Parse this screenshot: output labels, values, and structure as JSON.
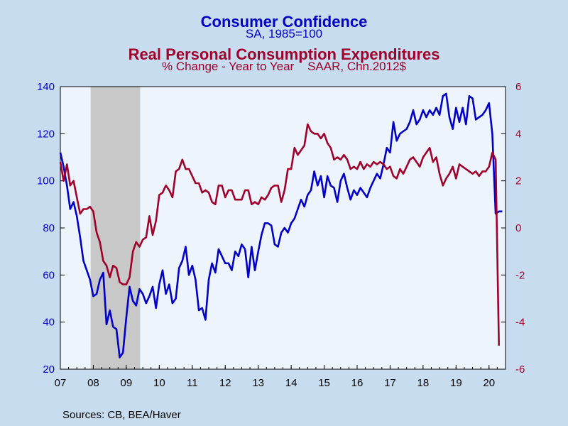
{
  "titles": {
    "series1_title": "Consumer Confidence",
    "series1_subtitle": "SA, 1985=100",
    "series2_title": "Real Personal Consumption Expenditures",
    "series2_subtitle": "% Change - Year to Year    SAAR, Chn.2012$"
  },
  "source": "Sources:  CB, BEA/Haver",
  "colors": {
    "series1": "#0000c8",
    "series2": "#a0002a",
    "plot_bg": "#eef4fb",
    "recession": "#c8c8c8",
    "page_bg": "#c8dcf0"
  },
  "chart_data": {
    "type": "line",
    "x_tick_labels": [
      "07",
      "08",
      "09",
      "10",
      "11",
      "12",
      "13",
      "14",
      "15",
      "16",
      "17",
      "18",
      "19",
      "20"
    ],
    "x_range": [
      2007.0,
      2020.5
    ],
    "left_axis": {
      "range": [
        20,
        140
      ],
      "ticks": [
        20,
        40,
        60,
        80,
        100,
        120,
        140
      ]
    },
    "right_axis": {
      "range": [
        -6,
        6
      ],
      "ticks": [
        -6,
        -4,
        -2,
        0,
        2,
        4,
        6
      ]
    },
    "recession_shading": [
      2007.92,
      2009.42
    ],
    "grid": false,
    "series": [
      {
        "name": "Consumer Confidence",
        "axis": "left",
        "x": [
          2007.0,
          2007.1,
          2007.2,
          2007.3,
          2007.4,
          2007.5,
          2007.6,
          2007.7,
          2007.8,
          2007.9,
          2008.0,
          2008.1,
          2008.2,
          2008.3,
          2008.4,
          2008.5,
          2008.6,
          2008.7,
          2008.8,
          2008.9,
          2009.0,
          2009.1,
          2009.2,
          2009.3,
          2009.4,
          2009.5,
          2009.6,
          2009.7,
          2009.8,
          2009.9,
          2010.0,
          2010.1,
          2010.2,
          2010.3,
          2010.4,
          2010.5,
          2010.6,
          2010.7,
          2010.8,
          2010.9,
          2011.0,
          2011.1,
          2011.2,
          2011.3,
          2011.4,
          2011.5,
          2011.6,
          2011.7,
          2011.8,
          2011.9,
          2012.0,
          2012.1,
          2012.2,
          2012.3,
          2012.4,
          2012.5,
          2012.6,
          2012.7,
          2012.8,
          2012.9,
          2013.0,
          2013.1,
          2013.2,
          2013.3,
          2013.4,
          2013.5,
          2013.6,
          2013.7,
          2013.8,
          2013.9,
          2014.0,
          2014.1,
          2014.2,
          2014.3,
          2014.4,
          2014.5,
          2014.6,
          2014.7,
          2014.8,
          2014.9,
          2015.0,
          2015.1,
          2015.2,
          2015.3,
          2015.4,
          2015.5,
          2015.6,
          2015.7,
          2015.8,
          2015.9,
          2016.0,
          2016.1,
          2016.2,
          2016.3,
          2016.4,
          2016.5,
          2016.6,
          2016.7,
          2016.8,
          2016.9,
          2017.0,
          2017.1,
          2017.2,
          2017.3,
          2017.4,
          2017.5,
          2017.6,
          2017.7,
          2017.8,
          2017.9,
          2018.0,
          2018.1,
          2018.2,
          2018.3,
          2018.4,
          2018.5,
          2018.6,
          2018.7,
          2018.8,
          2018.9,
          2019.0,
          2019.1,
          2019.2,
          2019.3,
          2019.4,
          2019.5,
          2019.6,
          2019.7,
          2019.8,
          2019.9,
          2020.0,
          2020.1,
          2020.2,
          2020.3,
          2020.4
        ],
        "values": [
          112,
          106,
          98,
          88,
          91,
          85,
          76,
          66,
          62,
          58,
          51,
          52,
          58,
          61,
          39,
          45,
          38,
          37,
          25,
          27,
          42,
          55,
          49,
          47,
          54,
          52,
          48,
          51,
          55,
          46,
          56,
          62,
          52,
          56,
          48,
          50,
          63,
          66,
          72,
          60,
          64,
          58,
          45,
          46,
          41,
          58,
          65,
          61,
          71,
          68,
          65,
          65,
          62,
          70,
          68,
          73,
          71,
          59,
          72,
          62,
          70,
          77,
          82,
          82,
          81,
          73,
          72,
          78,
          80,
          78,
          82,
          84,
          88,
          92,
          89,
          94,
          96,
          104,
          98,
          102,
          93,
          102,
          98,
          97,
          91,
          100,
          103,
          97,
          92,
          96,
          94,
          97,
          95,
          93,
          97,
          100,
          103,
          101,
          107,
          114,
          112,
          125,
          117,
          120,
          121,
          122,
          125,
          130,
          124,
          126,
          130,
          127,
          130,
          128,
          131,
          128,
          136,
          137,
          127,
          122,
          131,
          125,
          131,
          124,
          136,
          135,
          126,
          127,
          128,
          130,
          133,
          120,
          86,
          87,
          87
        ],
        "values_note": ""
      },
      {
        "name": "Real Personal Consumption Expenditures",
        "axis": "right",
        "x": [
          2007.0,
          2007.1,
          2007.2,
          2007.3,
          2007.4,
          2007.5,
          2007.6,
          2007.7,
          2007.8,
          2007.9,
          2008.0,
          2008.1,
          2008.2,
          2008.3,
          2008.4,
          2008.5,
          2008.6,
          2008.7,
          2008.8,
          2008.9,
          2009.0,
          2009.1,
          2009.2,
          2009.3,
          2009.4,
          2009.5,
          2009.6,
          2009.7,
          2009.8,
          2009.9,
          2010.0,
          2010.1,
          2010.2,
          2010.3,
          2010.4,
          2010.5,
          2010.6,
          2010.7,
          2010.8,
          2010.9,
          2011.0,
          2011.1,
          2011.2,
          2011.3,
          2011.4,
          2011.5,
          2011.6,
          2011.7,
          2011.8,
          2011.9,
          2012.0,
          2012.1,
          2012.2,
          2012.3,
          2012.4,
          2012.5,
          2012.6,
          2012.7,
          2012.8,
          2012.9,
          2013.0,
          2013.1,
          2013.2,
          2013.3,
          2013.4,
          2013.5,
          2013.6,
          2013.7,
          2013.8,
          2013.9,
          2014.0,
          2014.1,
          2014.2,
          2014.3,
          2014.4,
          2014.5,
          2014.6,
          2014.7,
          2014.8,
          2014.9,
          2015.0,
          2015.1,
          2015.2,
          2015.3,
          2015.4,
          2015.5,
          2015.6,
          2015.7,
          2015.8,
          2015.9,
          2016.0,
          2016.1,
          2016.2,
          2016.3,
          2016.4,
          2016.5,
          2016.6,
          2016.7,
          2016.8,
          2016.9,
          2017.0,
          2017.1,
          2017.2,
          2017.3,
          2017.4,
          2017.5,
          2017.6,
          2017.7,
          2017.8,
          2017.9,
          2018.0,
          2018.1,
          2018.2,
          2018.3,
          2018.4,
          2018.5,
          2018.6,
          2018.7,
          2018.8,
          2018.9,
          2019.0,
          2019.1,
          2019.2,
          2019.3,
          2019.4,
          2019.5,
          2019.6,
          2019.7,
          2019.8,
          2019.9,
          2020.0,
          2020.1,
          2020.2,
          2020.3
        ],
        "values": [
          2.8,
          2.0,
          2.7,
          1.8,
          2.0,
          1.3,
          0.6,
          0.8,
          0.8,
          0.9,
          0.7,
          -0.2,
          -0.6,
          -1.4,
          -1.6,
          -2.1,
          -1.6,
          -1.7,
          -2.3,
          -2.4,
          -2.4,
          -2.1,
          -1.0,
          -0.6,
          -0.8,
          -0.5,
          -0.4,
          0.5,
          -0.3,
          0.3,
          1.4,
          1.5,
          1.8,
          1.6,
          1.3,
          2.4,
          2.5,
          2.9,
          2.5,
          2.5,
          2.2,
          1.9,
          1.9,
          1.5,
          1.6,
          1.5,
          1.1,
          1.0,
          1.8,
          1.8,
          1.3,
          1.6,
          1.6,
          1.2,
          1.2,
          1.2,
          1.6,
          1.6,
          1.0,
          1.1,
          1.0,
          1.3,
          1.2,
          1.4,
          1.7,
          1.8,
          1.8,
          1.1,
          1.6,
          2.5,
          2.5,
          3.4,
          3.1,
          3.3,
          3.5,
          4.4,
          4.1,
          4.0,
          4.0,
          3.8,
          4.0,
          3.6,
          3.4,
          2.9,
          3.0,
          2.9,
          3.1,
          2.9,
          2.5,
          2.6,
          2.5,
          2.8,
          2.5,
          2.7,
          2.6,
          2.8,
          2.7,
          2.8,
          2.7,
          2.5,
          2.6,
          2.2,
          2.1,
          2.5,
          2.3,
          2.6,
          2.9,
          3.0,
          2.8,
          2.6,
          3.0,
          3.2,
          3.4,
          2.8,
          3.0,
          2.3,
          1.8,
          2.1,
          2.3,
          2.6,
          2.1,
          2.7,
          2.6,
          2.5,
          2.4,
          2.3,
          2.4,
          2.2,
          2.4,
          2.4,
          2.6,
          3.2,
          2.9,
          -5.0
        ]
      }
    ]
  }
}
